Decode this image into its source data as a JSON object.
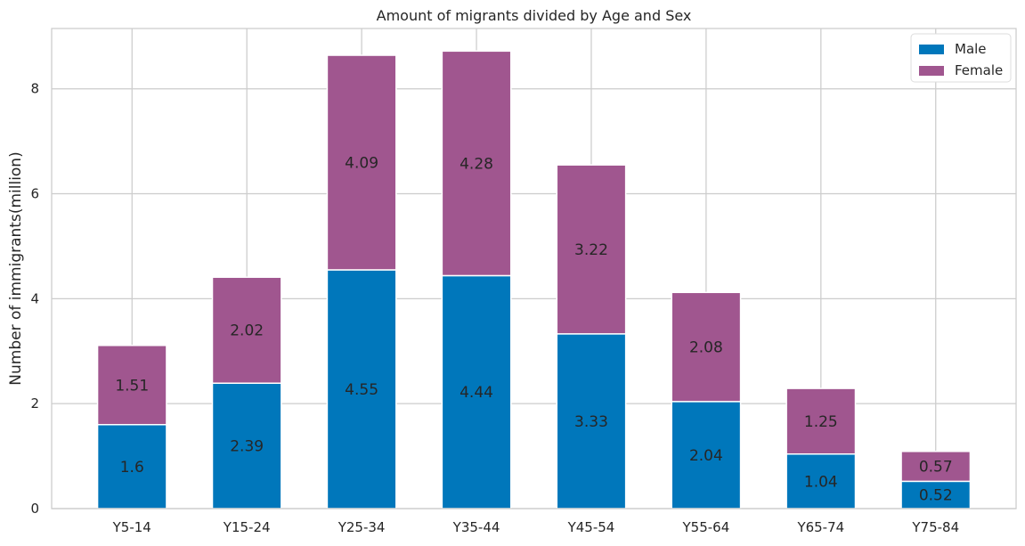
{
  "chart_data": {
    "type": "bar",
    "stacked": true,
    "title": "Amount of migrants divided by Age and Sex",
    "xlabel": "",
    "ylabel": "Number of immigrants(million)",
    "categories": [
      "Y5-14",
      "Y15-24",
      "Y25-34",
      "Y35-44",
      "Y45-54",
      "Y55-64",
      "Y65-74",
      "Y75-84"
    ],
    "series": [
      {
        "name": "Male",
        "color": "#0077BB",
        "values": [
          1.6,
          2.39,
          4.55,
          4.44,
          3.33,
          2.04,
          1.04,
          0.52
        ],
        "labels": [
          "1.6",
          "2.39",
          "4.55",
          "4.44",
          "3.33",
          "2.04",
          "1.04",
          "0.52"
        ]
      },
      {
        "name": "Female",
        "color": "#A0568F",
        "values": [
          1.51,
          2.02,
          4.09,
          4.28,
          3.22,
          2.08,
          1.25,
          0.57
        ],
        "labels": [
          "1.51",
          "2.02",
          "4.09",
          "4.28",
          "3.22",
          "2.08",
          "1.25",
          "0.57"
        ]
      }
    ],
    "ylim": [
      0,
      9.15
    ],
    "yticks": [
      0,
      2,
      4,
      6,
      8
    ],
    "ytick_labels": [
      "0",
      "2",
      "4",
      "6",
      "8"
    ],
    "grid": true,
    "legend_position": "top-right"
  }
}
